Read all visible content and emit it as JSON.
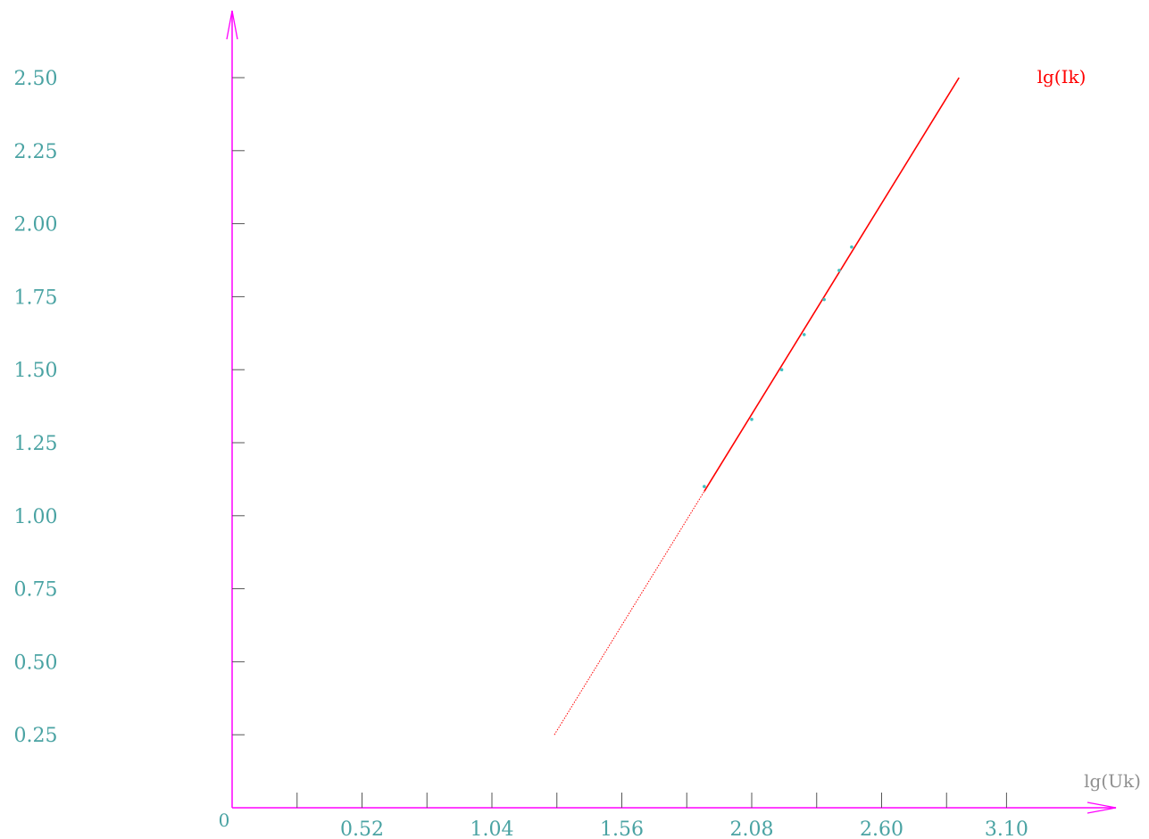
{
  "chart_data": {
    "type": "line",
    "title": "",
    "xlabel": "lg(Uk)",
    "ylabel": "",
    "origin_label": "0",
    "xlim": [
      0,
      3.48
    ],
    "ylim": [
      0,
      2.72
    ],
    "x_ticks": [
      0.26,
      0.52,
      0.78,
      1.04,
      1.3,
      1.56,
      1.82,
      2.08,
      2.34,
      2.6,
      2.86,
      3.1
    ],
    "x_tick_labels": [
      {
        "value": 0.52,
        "label": "0.52"
      },
      {
        "value": 1.04,
        "label": "1.04"
      },
      {
        "value": 1.56,
        "label": "1.56"
      },
      {
        "value": 2.08,
        "label": "2.08"
      },
      {
        "value": 2.6,
        "label": "2.60"
      },
      {
        "value": 3.1,
        "label": "3.10"
      }
    ],
    "y_ticks": [
      0.25,
      0.5,
      0.75,
      1.0,
      1.25,
      1.5,
      1.75,
      2.0,
      2.25,
      2.5
    ],
    "y_tick_labels": [
      "0.25",
      "0.50",
      "0.75",
      "1.00",
      "1.25",
      "1.50",
      "1.75",
      "2.00",
      "2.25",
      "2.50"
    ],
    "grid": false,
    "series": [
      {
        "name": "lg(Ik)",
        "kind": "fit-line",
        "x": [
          1.29,
          2.91
        ],
        "y": [
          0.25,
          2.5
        ]
      },
      {
        "kind": "points",
        "x": [
          1.89,
          2.08,
          2.2,
          2.29,
          2.37,
          2.43,
          2.48
        ],
        "y": [
          1.1,
          1.33,
          1.5,
          1.62,
          1.74,
          1.84,
          1.92
        ]
      }
    ],
    "colors": {
      "axis": "#ff00ff",
      "fit_line": "#ff0000",
      "points": "#40c0c0",
      "tick_label": "#4aa3a3",
      "x_title": "#909090",
      "series_label": "#ff0000"
    }
  }
}
